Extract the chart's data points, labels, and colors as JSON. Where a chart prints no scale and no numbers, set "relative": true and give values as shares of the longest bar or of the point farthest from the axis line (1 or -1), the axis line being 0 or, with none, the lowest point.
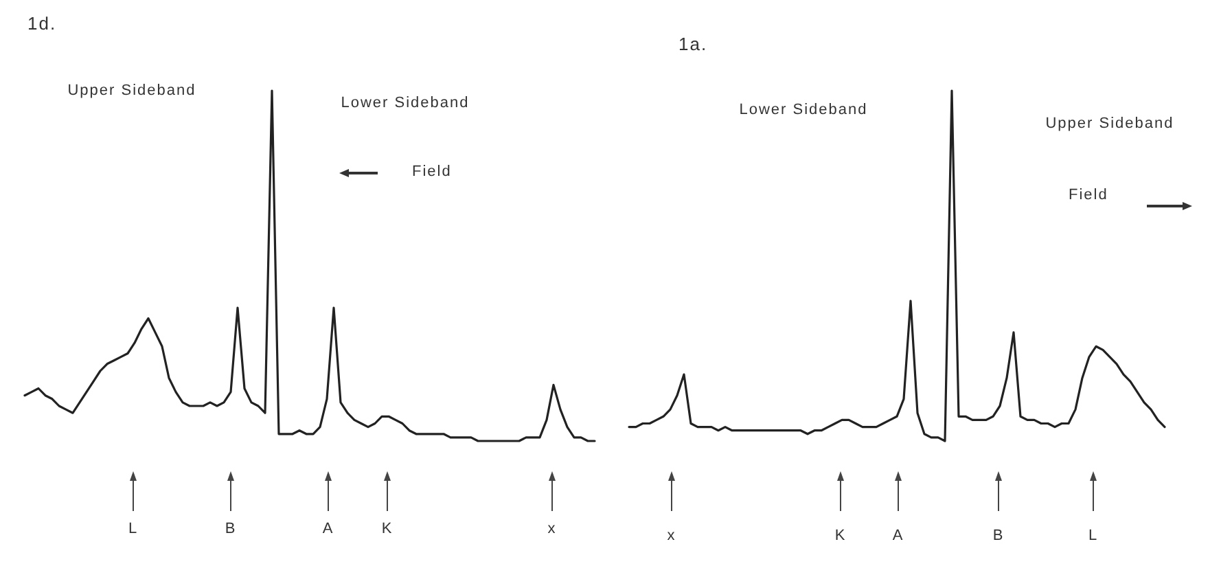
{
  "chart_data": [
    {
      "type": "line",
      "title": "1d.",
      "relative": true,
      "categories": [
        null,
        null,
        null,
        null,
        null,
        null,
        null,
        null,
        null,
        null,
        null,
        null,
        null,
        null,
        null,
        null,
        null,
        null,
        null,
        null,
        null,
        null,
        null,
        null,
        null,
        null,
        null,
        null,
        null,
        null,
        null,
        null,
        null,
        null,
        null,
        null,
        null,
        null,
        null,
        null,
        null,
        null,
        null,
        null,
        null,
        null,
        null,
        null,
        null,
        null,
        null,
        null,
        null,
        null,
        null,
        null,
        null,
        null,
        null,
        null,
        null,
        null,
        null,
        null,
        null,
        null,
        null,
        null,
        null,
        null,
        null,
        null,
        null,
        null,
        null,
        null,
        null,
        null,
        null,
        null,
        null,
        null,
        null,
        null
      ],
      "series": [
        {
          "color": "#222222",
          "values": [
            0.13,
            0.14,
            0.15,
            0.13,
            0.12,
            0.1,
            0.09,
            0.08,
            0.11,
            0.14,
            0.17,
            0.2,
            0.22,
            0.23,
            0.24,
            0.25,
            0.28,
            0.32,
            0.35,
            0.31,
            0.27,
            0.18,
            0.14,
            0.11,
            0.1,
            0.1,
            0.1,
            0.11,
            0.1,
            0.11,
            0.14,
            0.38,
            0.15,
            0.11,
            0.1,
            0.08,
            1.0,
            0.02,
            0.02,
            0.02,
            0.03,
            0.02,
            0.02,
            0.04,
            0.12,
            0.38,
            0.11,
            0.08,
            0.06,
            0.05,
            0.04,
            0.05,
            0.07,
            0.07,
            0.06,
            0.05,
            0.03,
            0.02,
            0.02,
            0.02,
            0.02,
            0.02,
            0.01,
            0.01,
            0.01,
            0.01,
            0.0,
            0.0,
            0.0,
            0.0,
            0.0,
            0.0,
            0.0,
            0.01,
            0.01,
            0.01,
            0.06,
            0.16,
            0.09,
            0.04,
            0.01,
            0.01,
            0.0,
            0.0
          ]
        }
      ],
      "annotations": [
        "Upper Sideband",
        "Lower Sideband",
        "Field",
        "L",
        "B",
        "A",
        "K",
        "x"
      ]
    },
    {
      "type": "line",
      "title": "1a.",
      "relative": true,
      "categories": [
        null,
        null,
        null,
        null,
        null,
        null,
        null,
        null,
        null,
        null,
        null,
        null,
        null,
        null,
        null,
        null,
        null,
        null,
        null,
        null,
        null,
        null,
        null,
        null,
        null,
        null,
        null,
        null,
        null,
        null,
        null,
        null,
        null,
        null,
        null,
        null,
        null,
        null,
        null,
        null,
        null,
        null,
        null,
        null,
        null,
        null,
        null,
        null,
        null,
        null,
        null,
        null,
        null,
        null,
        null,
        null,
        null,
        null,
        null,
        null,
        null,
        null,
        null,
        null,
        null,
        null,
        null,
        null,
        null,
        null,
        null,
        null,
        null,
        null,
        null,
        null,
        null,
        null,
        null
      ],
      "series": [
        {
          "color": "#222222",
          "values": [
            0.04,
            0.04,
            0.05,
            0.05,
            0.06,
            0.07,
            0.09,
            0.13,
            0.19,
            0.05,
            0.04,
            0.04,
            0.04,
            0.03,
            0.04,
            0.03,
            0.03,
            0.03,
            0.03,
            0.03,
            0.03,
            0.03,
            0.03,
            0.03,
            0.03,
            0.03,
            0.02,
            0.03,
            0.03,
            0.04,
            0.05,
            0.06,
            0.06,
            0.05,
            0.04,
            0.04,
            0.04,
            0.05,
            0.06,
            0.07,
            0.12,
            0.4,
            0.08,
            0.02,
            0.01,
            0.01,
            0.0,
            1.0,
            0.07,
            0.07,
            0.06,
            0.06,
            0.06,
            0.07,
            0.1,
            0.18,
            0.31,
            0.07,
            0.06,
            0.06,
            0.05,
            0.05,
            0.04,
            0.05,
            0.05,
            0.09,
            0.18,
            0.24,
            0.27,
            0.26,
            0.24,
            0.22,
            0.19,
            0.17,
            0.14,
            0.11,
            0.09,
            0.06,
            0.04
          ]
        }
      ],
      "annotations": [
        "Lower Sideband",
        "Upper Sideband",
        "Field",
        "x",
        "K",
        "A",
        "B",
        "L"
      ]
    }
  ]
}
